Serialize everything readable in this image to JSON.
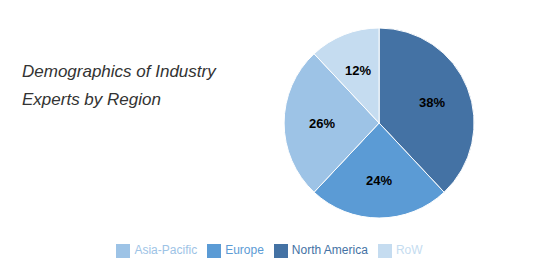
{
  "chart_data": {
    "type": "pie",
    "title": "Demographics of Industry",
    "subtitle": "Experts by Region",
    "categories": [
      "North America",
      "Europe",
      "Asia-Pacific",
      "RoW"
    ],
    "values": [
      38,
      24,
      26,
      12
    ],
    "value_labels": [
      "38%",
      "24%",
      "26%",
      "12%"
    ],
    "colors": [
      "#4472A4",
      "#5B9BD5",
      "#9DC3E6",
      "#C5DCF0"
    ],
    "data_labels": true,
    "legend": "bottom"
  }
}
